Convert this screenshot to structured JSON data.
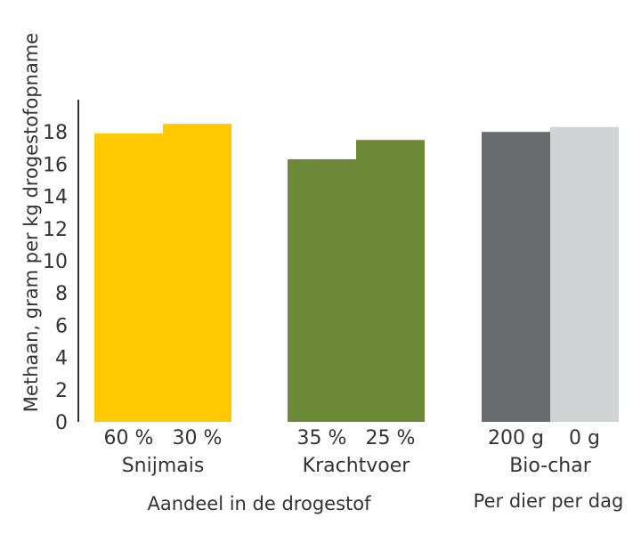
{
  "chart_data": {
    "type": "bar",
    "title": "",
    "ylabel": "Methaan, gram per kg drogestofopname",
    "ylim": [
      0,
      20
    ],
    "yticks": [
      0,
      2,
      4,
      6,
      8,
      10,
      12,
      14,
      16,
      18
    ],
    "grid": false,
    "groups": [
      {
        "name": "Snijmais",
        "bars": [
          {
            "label": "60 %",
            "value": 17.9,
            "color": "#FFC800"
          },
          {
            "label": "30 %",
            "value": 18.5,
            "color": "#FFC800"
          }
        ]
      },
      {
        "name": "Krachtvoer",
        "bars": [
          {
            "label": "35 %",
            "value": 16.3,
            "color": "#6B8937"
          },
          {
            "label": "25 %",
            "value": 17.5,
            "color": "#6B8937"
          }
        ]
      },
      {
        "name": "Bio-char",
        "bars": [
          {
            "label": "200 g",
            "value": 18.0,
            "color": "#6A6B6E"
          },
          {
            "label": "0 g",
            "value": 18.3,
            "color": "#D2D3D5"
          }
        ]
      }
    ],
    "group_captions": [
      "Aandeel in de drogestof",
      "Per dier per dag"
    ]
  }
}
